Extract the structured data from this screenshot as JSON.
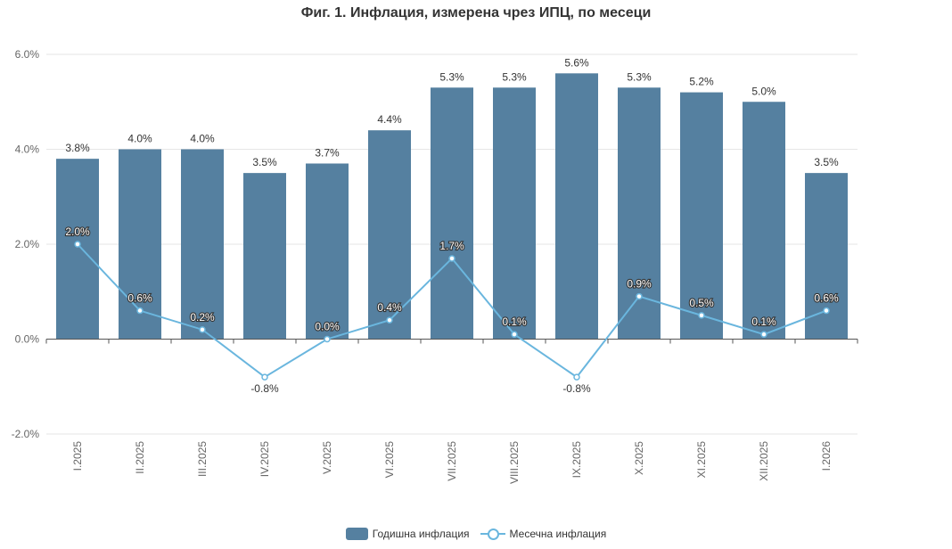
{
  "chart_data": {
    "type": "bar",
    "title": "Фиг. 1. Инфлация, измерена чрез ИПЦ, по месеци",
    "categories": [
      "I.2025",
      "II.2025",
      "III.2025",
      "IV.2025",
      "V.2025",
      "VI.2025",
      "VII.2025",
      "VIII.2025",
      "IX.2025",
      "X.2025",
      "XI.2025",
      "XII.2025",
      "I.2026"
    ],
    "series": [
      {
        "name": "Годишна инфлация",
        "type": "bar",
        "color": "#5580a0",
        "values": [
          3.8,
          4.0,
          4.0,
          3.5,
          3.7,
          4.4,
          5.3,
          5.3,
          5.6,
          5.3,
          5.2,
          5.0,
          3.5
        ]
      },
      {
        "name": "Месечна инфлация",
        "type": "line",
        "color": "#6ab6de",
        "values": [
          2.0,
          0.6,
          0.2,
          -0.8,
          0.0,
          0.4,
          1.7,
          0.1,
          -0.8,
          0.9,
          0.5,
          0.1,
          0.6
        ]
      }
    ],
    "ylim": [
      -2.0,
      6.0
    ],
    "yticks": [
      "-2.0%",
      "0.0%",
      "2.0%",
      "4.0%",
      "6.0%"
    ],
    "value_suffix": "%",
    "grid": true,
    "legend_position": "bottom-center"
  }
}
